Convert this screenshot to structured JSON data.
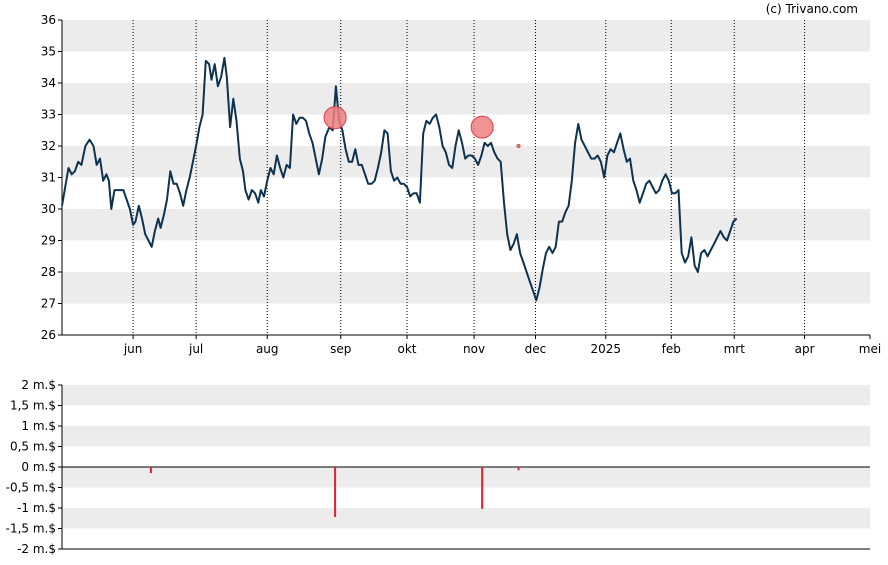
{
  "watermark": "(c) Trivano.com",
  "colors": {
    "price_line": "#0d3350",
    "band": "#ececec",
    "marker_fill": "#f08080",
    "marker_stroke": "#e23c4a",
    "volume_bar": "#e0202e",
    "axis": "#000000"
  },
  "chart_data": [
    {
      "type": "line",
      "name": "price",
      "ylim": [
        26,
        36
      ],
      "yticks": [
        "26",
        "27",
        "28",
        "29",
        "30",
        "31",
        "32",
        "33",
        "34",
        "35",
        "36"
      ],
      "months": [
        {
          "label": "jun",
          "x": 0.088
        },
        {
          "label": "jul",
          "x": 0.166
        },
        {
          "label": "aug",
          "x": 0.254
        },
        {
          "label": "sep",
          "x": 0.345
        },
        {
          "label": "okt",
          "x": 0.427
        },
        {
          "label": "nov",
          "x": 0.51
        },
        {
          "label": "dec",
          "x": 0.586
        },
        {
          "label": "2025",
          "x": 0.673
        },
        {
          "label": "feb",
          "x": 0.754
        },
        {
          "label": "mrt",
          "x": 0.832
        },
        {
          "label": "apr",
          "x": 0.919
        },
        {
          "label": "mei",
          "x": 1.0
        }
      ],
      "points": [
        [
          0.0,
          30.1
        ],
        [
          0.004,
          30.7
        ],
        [
          0.008,
          31.3
        ],
        [
          0.012,
          31.1
        ],
        [
          0.016,
          31.2
        ],
        [
          0.02,
          31.5
        ],
        [
          0.024,
          31.4
        ],
        [
          0.029,
          32.0
        ],
        [
          0.034,
          32.2
        ],
        [
          0.039,
          32.0
        ],
        [
          0.043,
          31.4
        ],
        [
          0.047,
          31.6
        ],
        [
          0.051,
          30.9
        ],
        [
          0.055,
          31.1
        ],
        [
          0.058,
          30.9
        ],
        [
          0.061,
          30.0
        ],
        [
          0.065,
          30.6
        ],
        [
          0.071,
          30.6
        ],
        [
          0.076,
          30.6
        ],
        [
          0.08,
          30.3
        ],
        [
          0.084,
          30.0
        ],
        [
          0.088,
          29.5
        ],
        [
          0.091,
          29.6
        ],
        [
          0.095,
          30.1
        ],
        [
          0.099,
          29.7
        ],
        [
          0.103,
          29.2
        ],
        [
          0.107,
          29.0
        ],
        [
          0.111,
          28.8
        ],
        [
          0.115,
          29.3
        ],
        [
          0.119,
          29.7
        ],
        [
          0.122,
          29.4
        ],
        [
          0.126,
          29.8
        ],
        [
          0.13,
          30.3
        ],
        [
          0.134,
          31.2
        ],
        [
          0.138,
          30.8
        ],
        [
          0.142,
          30.8
        ],
        [
          0.146,
          30.5
        ],
        [
          0.15,
          30.1
        ],
        [
          0.154,
          30.6
        ],
        [
          0.158,
          31.0
        ],
        [
          0.162,
          31.5
        ],
        [
          0.166,
          32.0
        ],
        [
          0.17,
          32.6
        ],
        [
          0.174,
          33.0
        ],
        [
          0.178,
          34.7
        ],
        [
          0.182,
          34.6
        ],
        [
          0.185,
          34.1
        ],
        [
          0.189,
          34.6
        ],
        [
          0.193,
          33.9
        ],
        [
          0.197,
          34.2
        ],
        [
          0.201,
          34.8
        ],
        [
          0.204,
          34.2
        ],
        [
          0.208,
          32.6
        ],
        [
          0.212,
          33.5
        ],
        [
          0.216,
          32.8
        ],
        [
          0.22,
          31.6
        ],
        [
          0.224,
          31.2
        ],
        [
          0.227,
          30.6
        ],
        [
          0.231,
          30.3
        ],
        [
          0.235,
          30.6
        ],
        [
          0.239,
          30.5
        ],
        [
          0.243,
          30.2
        ],
        [
          0.246,
          30.6
        ],
        [
          0.25,
          30.4
        ],
        [
          0.254,
          30.9
        ],
        [
          0.258,
          31.3
        ],
        [
          0.262,
          31.1
        ],
        [
          0.266,
          31.7
        ],
        [
          0.27,
          31.3
        ],
        [
          0.274,
          31.0
        ],
        [
          0.278,
          31.4
        ],
        [
          0.282,
          31.3
        ],
        [
          0.286,
          33.0
        ],
        [
          0.29,
          32.7
        ],
        [
          0.294,
          32.9
        ],
        [
          0.298,
          32.9
        ],
        [
          0.302,
          32.8
        ],
        [
          0.306,
          32.4
        ],
        [
          0.31,
          32.1
        ],
        [
          0.314,
          31.6
        ],
        [
          0.318,
          31.1
        ],
        [
          0.322,
          31.6
        ],
        [
          0.326,
          32.3
        ],
        [
          0.331,
          32.6
        ],
        [
          0.335,
          32.5
        ],
        [
          0.339,
          33.9
        ],
        [
          0.343,
          32.8
        ],
        [
          0.347,
          32.5
        ],
        [
          0.351,
          31.9
        ],
        [
          0.355,
          31.5
        ],
        [
          0.359,
          31.5
        ],
        [
          0.363,
          31.9
        ],
        [
          0.367,
          31.4
        ],
        [
          0.371,
          31.4
        ],
        [
          0.375,
          31.1
        ],
        [
          0.379,
          30.8
        ],
        [
          0.383,
          30.8
        ],
        [
          0.387,
          30.9
        ],
        [
          0.391,
          31.3
        ],
        [
          0.395,
          31.8
        ],
        [
          0.399,
          32.5
        ],
        [
          0.403,
          32.4
        ],
        [
          0.407,
          31.2
        ],
        [
          0.411,
          30.9
        ],
        [
          0.415,
          31.0
        ],
        [
          0.419,
          30.8
        ],
        [
          0.423,
          30.8
        ],
        [
          0.427,
          30.7
        ],
        [
          0.431,
          30.4
        ],
        [
          0.435,
          30.5
        ],
        [
          0.439,
          30.5
        ],
        [
          0.443,
          30.2
        ],
        [
          0.447,
          32.4
        ],
        [
          0.451,
          32.8
        ],
        [
          0.455,
          32.7
        ],
        [
          0.459,
          32.9
        ],
        [
          0.463,
          33.0
        ],
        [
          0.467,
          32.6
        ],
        [
          0.471,
          32.0
        ],
        [
          0.475,
          31.8
        ],
        [
          0.479,
          31.4
        ],
        [
          0.483,
          31.3
        ],
        [
          0.487,
          32.0
        ],
        [
          0.491,
          32.5
        ],
        [
          0.495,
          32.1
        ],
        [
          0.499,
          31.6
        ],
        [
          0.503,
          31.7
        ],
        [
          0.507,
          31.7
        ],
        [
          0.511,
          31.6
        ],
        [
          0.515,
          31.4
        ],
        [
          0.519,
          31.7
        ],
        [
          0.523,
          32.1
        ],
        [
          0.527,
          32.0
        ],
        [
          0.531,
          32.1
        ],
        [
          0.535,
          31.8
        ],
        [
          0.539,
          31.6
        ],
        [
          0.543,
          31.5
        ],
        [
          0.547,
          30.2
        ],
        [
          0.551,
          29.2
        ],
        [
          0.555,
          28.7
        ],
        [
          0.559,
          28.9
        ],
        [
          0.563,
          29.2
        ],
        [
          0.567,
          28.6
        ],
        [
          0.571,
          28.3
        ],
        [
          0.575,
          28.0
        ],
        [
          0.579,
          27.7
        ],
        [
          0.583,
          27.4
        ],
        [
          0.587,
          27.1
        ],
        [
          0.591,
          27.5
        ],
        [
          0.595,
          28.1
        ],
        [
          0.599,
          28.6
        ],
        [
          0.603,
          28.8
        ],
        [
          0.607,
          28.6
        ],
        [
          0.611,
          28.8
        ],
        [
          0.615,
          29.6
        ],
        [
          0.619,
          29.6
        ],
        [
          0.623,
          29.9
        ],
        [
          0.627,
          30.1
        ],
        [
          0.631,
          30.9
        ],
        [
          0.635,
          32.1
        ],
        [
          0.639,
          32.7
        ],
        [
          0.643,
          32.2
        ],
        [
          0.647,
          32.0
        ],
        [
          0.651,
          31.8
        ],
        [
          0.655,
          31.6
        ],
        [
          0.659,
          31.6
        ],
        [
          0.663,
          31.7
        ],
        [
          0.667,
          31.5
        ],
        [
          0.671,
          31.0
        ],
        [
          0.675,
          31.7
        ],
        [
          0.679,
          31.9
        ],
        [
          0.683,
          31.8
        ],
        [
          0.687,
          32.1
        ],
        [
          0.691,
          32.4
        ],
        [
          0.695,
          31.9
        ],
        [
          0.699,
          31.5
        ],
        [
          0.703,
          31.6
        ],
        [
          0.707,
          30.9
        ],
        [
          0.711,
          30.6
        ],
        [
          0.715,
          30.2
        ],
        [
          0.719,
          30.5
        ],
        [
          0.723,
          30.8
        ],
        [
          0.727,
          30.9
        ],
        [
          0.731,
          30.7
        ],
        [
          0.735,
          30.5
        ],
        [
          0.739,
          30.6
        ],
        [
          0.743,
          30.9
        ],
        [
          0.747,
          31.1
        ],
        [
          0.751,
          30.9
        ],
        [
          0.755,
          30.5
        ],
        [
          0.759,
          30.5
        ],
        [
          0.763,
          30.6
        ],
        [
          0.767,
          28.6
        ],
        [
          0.771,
          28.3
        ],
        [
          0.775,
          28.5
        ],
        [
          0.779,
          29.1
        ],
        [
          0.783,
          28.2
        ],
        [
          0.787,
          28.0
        ],
        [
          0.791,
          28.6
        ],
        [
          0.795,
          28.7
        ],
        [
          0.799,
          28.5
        ],
        [
          0.803,
          28.7
        ],
        [
          0.807,
          28.9
        ],
        [
          0.811,
          29.1
        ],
        [
          0.815,
          29.3
        ],
        [
          0.819,
          29.1
        ],
        [
          0.823,
          29.0
        ],
        [
          0.827,
          29.3
        ],
        [
          0.831,
          29.6
        ],
        [
          0.835,
          29.7
        ]
      ],
      "markers": [
        {
          "x": 0.338,
          "y": 32.9,
          "size": "large"
        },
        {
          "x": 0.52,
          "y": 32.6,
          "size": "large"
        },
        {
          "x": 0.565,
          "y": 32.0,
          "size": "small"
        }
      ]
    },
    {
      "type": "bar",
      "name": "volume",
      "ylim": [
        -2,
        2
      ],
      "yticks": [
        "-2 m.$",
        "-1,5 m.$",
        "-1 m.$",
        "-0,5 m.$",
        "0 m.$",
        "0,5 m.$",
        "1 m.$",
        "1,5 m.$",
        "2 m.$"
      ],
      "bars": [
        {
          "x": 0.11,
          "value": -0.15
        },
        {
          "x": 0.338,
          "value": -1.22
        },
        {
          "x": 0.52,
          "value": -1.02
        },
        {
          "x": 0.565,
          "value": -0.08
        }
      ]
    }
  ]
}
